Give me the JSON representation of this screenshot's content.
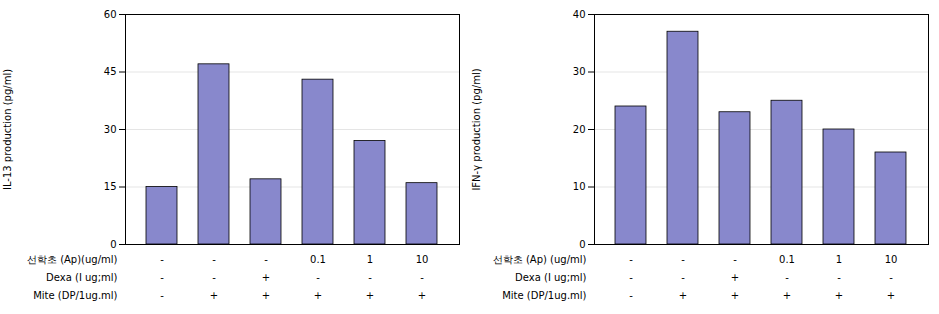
{
  "chart_data": [
    {
      "type": "bar",
      "ylabel": "IL-13 production (pg/ml)",
      "values": [
        15,
        47,
        17,
        43,
        27,
        16
      ],
      "color": "#8888cc",
      "ylim": [
        0,
        60
      ],
      "yticks": [
        0,
        15,
        30,
        45,
        60
      ],
      "grid": true,
      "tick_labels": "y",
      "category_rows": [
        {
          "label": "선학초 (Ap)(ug/ml)",
          "values": [
            "-",
            "-",
            "-",
            "0.1",
            "1",
            "10"
          ]
        },
        {
          "label": "Dexa (I ug;ml)",
          "values": [
            "-",
            "-",
            "+",
            "-",
            "-",
            "-"
          ]
        },
        {
          "label": "Mite (DP/1ug.ml)",
          "values": [
            "-",
            "+",
            "+",
            "+",
            "+",
            "+"
          ]
        }
      ]
    },
    {
      "type": "bar",
      "ylabel": "IFN-γ production (pg/ml)",
      "values": [
        24,
        37,
        23,
        25,
        20,
        16
      ],
      "color": "#8888cc",
      "ylim": [
        0,
        40
      ],
      "yticks": [
        0,
        10,
        20,
        30,
        40
      ],
      "grid": true,
      "tick_labels": "y",
      "category_rows": [
        {
          "label": "선학초 (Ap) (ug/ml)",
          "values": [
            "-",
            "-",
            "-",
            "0.1",
            "1",
            "10"
          ]
        },
        {
          "label": "Dexa (I ug;ml)",
          "values": [
            "-",
            "-",
            "+",
            "-",
            "-",
            "-"
          ]
        },
        {
          "label": "Mite (DP/1ug.ml)",
          "values": [
            "-",
            "+",
            "+",
            "+",
            "+",
            "+"
          ]
        }
      ]
    }
  ]
}
